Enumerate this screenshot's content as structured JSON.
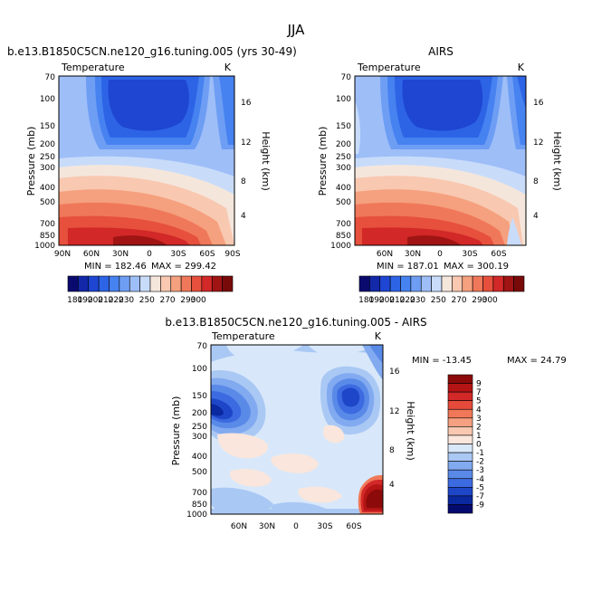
{
  "figure": {
    "season": "JJA",
    "levels": [
      180,
      190,
      200,
      210,
      220,
      230,
      240,
      250,
      260,
      270,
      280,
      290,
      300
    ],
    "level_colors": [
      "#0a0a6e",
      "#1228a8",
      "#1e46d2",
      "#2d64e6",
      "#4682f0",
      "#6e9ef4",
      "#9ebef8",
      "#c8dcfa",
      "#f5e6dc",
      "#f8c8b0",
      "#f5a07e",
      "#f0785a",
      "#e6503c",
      "#d22828",
      "#a01414",
      "#780a0a"
    ],
    "diff_levels": [
      "9",
      "7",
      "5",
      "4",
      "3",
      "2",
      "1",
      "0",
      "-1",
      "-2",
      "-3",
      "-4",
      "-5",
      "-7",
      "-9"
    ],
    "diff_colors": [
      "#8c0a0a",
      "#b41414",
      "#d22828",
      "#e64a3a",
      "#f07858",
      "#f5a080",
      "#f8c8b0",
      "#fae6dc",
      "#d8e8fa",
      "#aac8f4",
      "#82aaf0",
      "#5a8ae8",
      "#3c6ae0",
      "#1e46c8",
      "#0a28a0",
      "#050a6e"
    ]
  },
  "chart_data": [
    {
      "type": "heatmap",
      "title": "b.e13.B1850C5CN.ne120_g16.tuning.005 (yrs 30-49)",
      "variable": "Temperature",
      "units": "K",
      "ylabel": "Pressure (mb)",
      "ylabel_right": "Height (km)",
      "yticks": [
        "70",
        "100",
        "150",
        "200",
        "250",
        "300",
        "400",
        "500",
        "700",
        "850",
        "1000"
      ],
      "yticks_right": [
        "16",
        "12",
        "8",
        "4"
      ],
      "xticks": [
        "90N",
        "60N",
        "30N",
        "0",
        "30S",
        "60S",
        "90S"
      ],
      "min_label": "MIN = 182.46",
      "max_label": "MAX = 299.42",
      "min": 182.46,
      "max": 299.42
    },
    {
      "type": "heatmap",
      "title": "AIRS",
      "variable": "Temperature",
      "units": "K",
      "ylabel": "Pressure (mb)",
      "ylabel_right": "Height (km)",
      "yticks": [
        "70",
        "100",
        "150",
        "200",
        "250",
        "300",
        "400",
        "500",
        "700",
        "850",
        "1000"
      ],
      "yticks_right": [
        "16",
        "12",
        "8",
        "4"
      ],
      "xticks": [
        "60N",
        "30N",
        "0",
        "30S",
        "60S"
      ],
      "min_label": "MIN = 187.01",
      "max_label": "MAX = 300.19",
      "min": 187.01,
      "max": 300.19
    },
    {
      "type": "heatmap",
      "title": "b.e13.B1850C5CN.ne120_g16.tuning.005 - AIRS",
      "variable": "Temperature",
      "units": "K",
      "ylabel": "Pressure (mb)",
      "ylabel_right": "Height (km)",
      "yticks": [
        "70",
        "100",
        "150",
        "200",
        "250",
        "300",
        "400",
        "500",
        "700",
        "850",
        "1000"
      ],
      "yticks_right": [
        "16",
        "12",
        "8",
        "4"
      ],
      "xticks": [
        "60N",
        "30N",
        "0",
        "30S",
        "60S"
      ],
      "min_label": "MIN = -13.45",
      "max_label": "MAX =  24.79",
      "min": -13.45,
      "max": 24.79
    }
  ],
  "colorbar_labels": [
    "180",
    "190",
    "200",
    "210",
    "220",
    "230",
    "250",
    "270",
    "290",
    "300"
  ]
}
